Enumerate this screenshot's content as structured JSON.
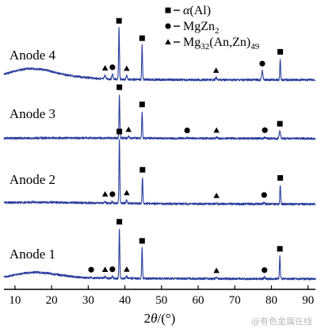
{
  "chart_data": {
    "type": "line",
    "xlabel_parts": [
      "2",
      "θ",
      "/(°)"
    ],
    "xlim": [
      7,
      92
    ],
    "xticks": [
      10,
      20,
      30,
      40,
      50,
      60,
      70,
      80,
      90
    ],
    "series": [
      {
        "name": "Anode 4",
        "label_x": 8.5,
        "points": [
          [
            7,
            0.03
          ],
          [
            9,
            0.042
          ],
          [
            11,
            0.052
          ],
          [
            13,
            0.058
          ],
          [
            15,
            0.06
          ],
          [
            17,
            0.057
          ],
          [
            19,
            0.05
          ],
          [
            21,
            0.04
          ],
          [
            23,
            0.03
          ],
          [
            26,
            0.02
          ],
          [
            30,
            0.012
          ],
          [
            34,
            0.006
          ],
          [
            38,
            0.004
          ],
          [
            42,
            0.003
          ],
          [
            50,
            0.002
          ],
          [
            60,
            0.001
          ],
          [
            70,
            0.001
          ],
          [
            80,
            0.001
          ],
          [
            92,
            0.001
          ]
        ],
        "peaks": [
          [
            34.6,
            0.02
          ],
          [
            36.6,
            0.025
          ],
          [
            38.4,
            0.27
          ],
          [
            40.5,
            0.02
          ],
          [
            44.7,
            0.18
          ],
          [
            64.9,
            0.012
          ],
          [
            77.5,
            0.048
          ],
          [
            82.4,
            0.11
          ]
        ]
      },
      {
        "name": "Anode 3",
        "label_x": 8.5,
        "points": [
          [
            7,
            0.002
          ],
          [
            20,
            0.004
          ],
          [
            30,
            0.004
          ],
          [
            40,
            0.003
          ],
          [
            60,
            0.002
          ],
          [
            92,
            0.001
          ]
        ],
        "peaks": [
          [
            38.5,
            0.23
          ],
          [
            41.0,
            0.008
          ],
          [
            44.7,
            0.14
          ],
          [
            57.0,
            0.004
          ],
          [
            65.0,
            0.005
          ],
          [
            78.2,
            0.006
          ],
          [
            82.3,
            0.04
          ]
        ]
      },
      {
        "name": "Anode 2",
        "label_x": 8.5,
        "points": [
          [
            7,
            0.01
          ],
          [
            15,
            0.012
          ],
          [
            25,
            0.01
          ],
          [
            35,
            0.007
          ],
          [
            50,
            0.004
          ],
          [
            70,
            0.003
          ],
          [
            92,
            0.002
          ]
        ],
        "peaks": [
          [
            34.6,
            0.01
          ],
          [
            36.6,
            0.01
          ],
          [
            38.5,
            0.34
          ],
          [
            40.5,
            0.018
          ],
          [
            44.8,
            0.14
          ],
          [
            65.0,
            0.006
          ],
          [
            78.0,
            0.01
          ],
          [
            82.4,
            0.1
          ]
        ]
      },
      {
        "name": "Anode 1",
        "label_x": 8.5,
        "points": [
          [
            7,
            0.01
          ],
          [
            10,
            0.022
          ],
          [
            13,
            0.032
          ],
          [
            16,
            0.036
          ],
          [
            19,
            0.031
          ],
          [
            22,
            0.022
          ],
          [
            26,
            0.012
          ],
          [
            30,
            0.006
          ],
          [
            36,
            0.004
          ],
          [
            45,
            0.003
          ],
          [
            60,
            0.002
          ],
          [
            92,
            0.001
          ]
        ],
        "peaks": [
          [
            30.8,
            0.006
          ],
          [
            34.6,
            0.008
          ],
          [
            36.6,
            0.01
          ],
          [
            38.5,
            0.26
          ],
          [
            40.5,
            0.01
          ],
          [
            44.7,
            0.16
          ],
          [
            65.0,
            0.005
          ],
          [
            78.1,
            0.008
          ],
          [
            82.3,
            0.12
          ]
        ]
      }
    ],
    "markers": [
      [
        {
          "x": 38.4,
          "s": "square"
        },
        {
          "x": 44.7,
          "s": "square"
        },
        {
          "x": 82.4,
          "s": "square"
        },
        {
          "x": 36.6,
          "s": "circle"
        },
        {
          "x": 77.5,
          "s": "circle"
        },
        {
          "x": 34.6,
          "s": "triangle"
        },
        {
          "x": 40.5,
          "s": "triangle"
        },
        {
          "x": 64.9,
          "s": "triangle"
        }
      ],
      [
        {
          "x": 38.5,
          "s": "square"
        },
        {
          "x": 44.7,
          "s": "square"
        },
        {
          "x": 82.3,
          "s": "square"
        },
        {
          "x": 57.0,
          "s": "circle"
        },
        {
          "x": 78.2,
          "s": "circle"
        },
        {
          "x": 41.0,
          "s": "triangle"
        },
        {
          "x": 65.0,
          "s": "triangle"
        }
      ],
      [
        {
          "x": 38.5,
          "s": "square"
        },
        {
          "x": 44.8,
          "s": "square"
        },
        {
          "x": 82.4,
          "s": "square"
        },
        {
          "x": 36.6,
          "s": "circle"
        },
        {
          "x": 78.0,
          "s": "circle"
        },
        {
          "x": 34.6,
          "s": "triangle"
        },
        {
          "x": 40.5,
          "s": "triangle"
        },
        {
          "x": 65.0,
          "s": "triangle"
        }
      ],
      [
        {
          "x": 38.5,
          "s": "square"
        },
        {
          "x": 44.7,
          "s": "square"
        },
        {
          "x": 82.3,
          "s": "square"
        },
        {
          "x": 30.8,
          "s": "circle"
        },
        {
          "x": 36.6,
          "s": "circle"
        },
        {
          "x": 78.1,
          "s": "circle"
        },
        {
          "x": 34.6,
          "s": "triangle"
        },
        {
          "x": 40.5,
          "s": "triangle"
        },
        {
          "x": 65.0,
          "s": "triangle"
        }
      ]
    ],
    "legend": [
      {
        "symbol": "square",
        "text_parts": [
          [
            "α",
            "it"
          ],
          [
            "(Al)",
            ""
          ]
        ]
      },
      {
        "symbol": "circle",
        "text_parts": [
          [
            "MgZn",
            ""
          ],
          [
            "2",
            "sub"
          ]
        ]
      },
      {
        "symbol": "triangle",
        "text_parts": [
          [
            "Mg",
            ""
          ],
          [
            "32",
            "sub"
          ],
          [
            "(An,Zn)",
            ""
          ],
          [
            "49",
            "sub"
          ]
        ]
      }
    ],
    "legend_placement": "top-right",
    "colors": {
      "series": "#2b3f9e",
      "axis": "#000000"
    }
  },
  "watermark": "@有色金属在线"
}
